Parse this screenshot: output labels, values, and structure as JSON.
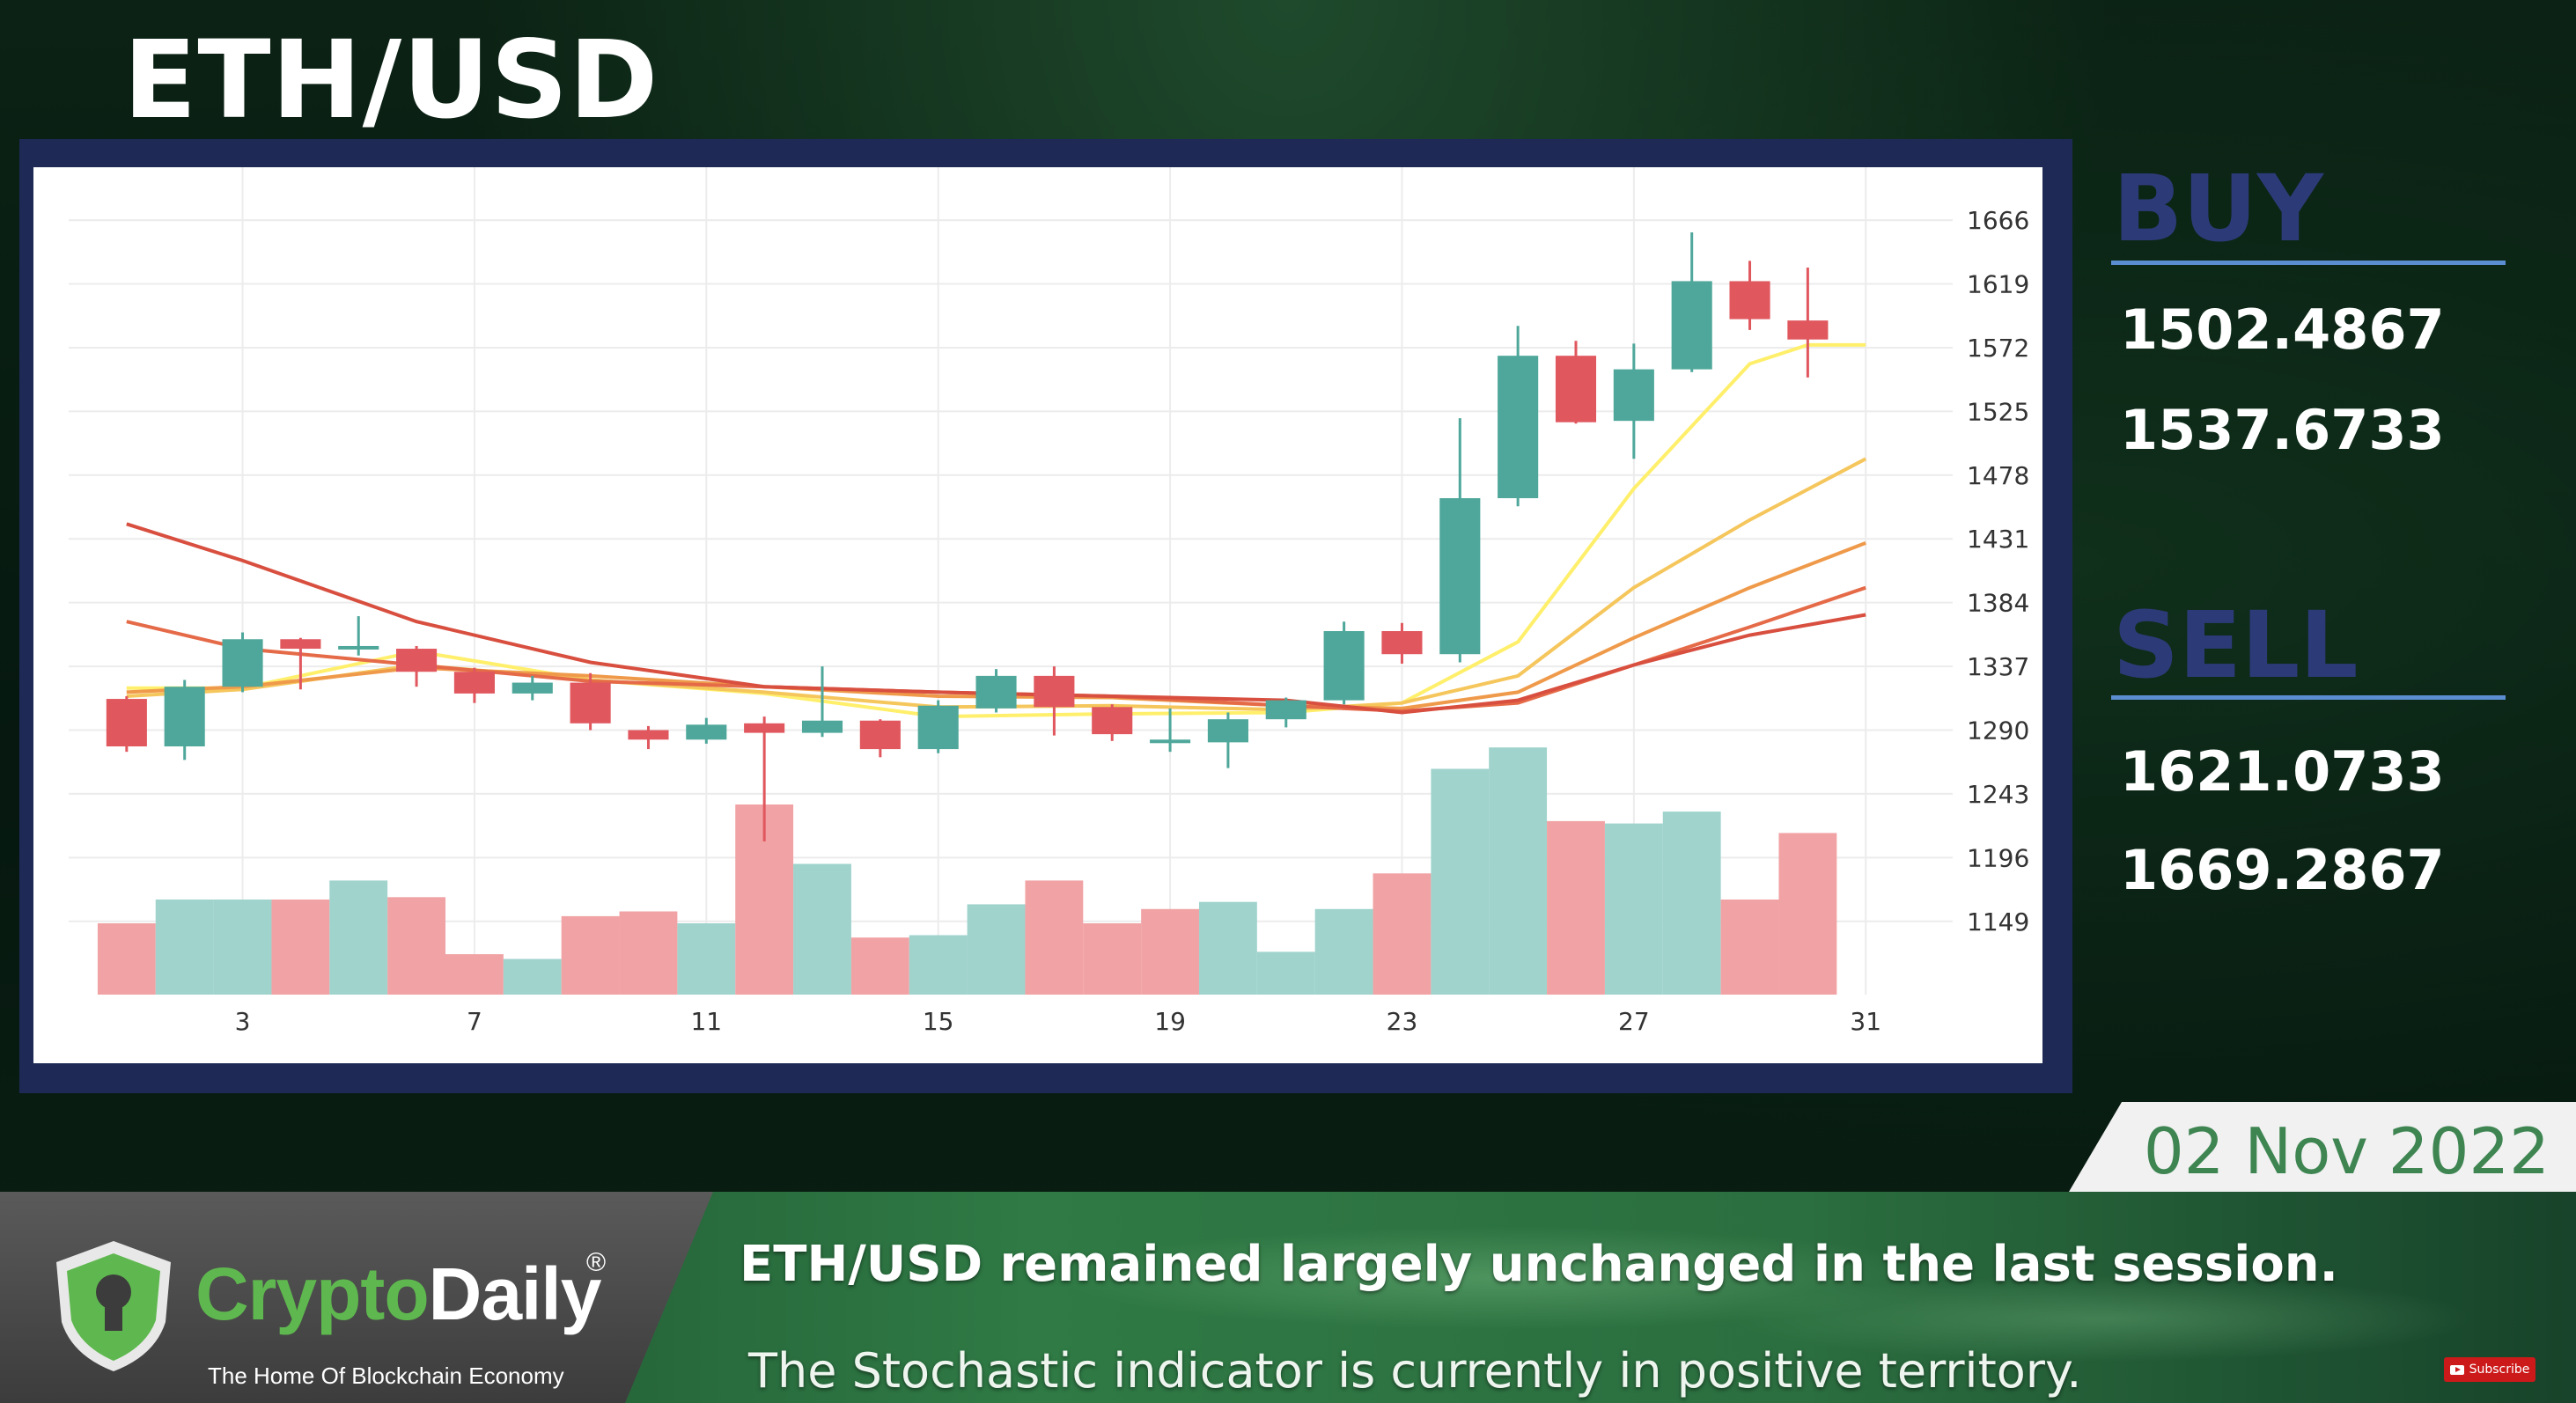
{
  "title": "ETH/USD",
  "buy": {
    "label": "BUY",
    "values": [
      "1502.4867",
      "1537.6733"
    ]
  },
  "sell": {
    "label": "SELL",
    "values": [
      "1621.0733",
      "1669.2867"
    ]
  },
  "date": "02 Nov 2022",
  "ticker": {
    "line1": "ETH/USD remained largely unchanged in the last session.",
    "line2": "The Stochastic indicator is currently in positive territory."
  },
  "brand": {
    "name_part1": "Crypto",
    "name_part2": "Daily",
    "registered": "®",
    "tagline": "The Home Of Blockchain Economy",
    "subscribe": "Subscribe"
  },
  "colors": {
    "up": "#4ea79a",
    "down": "#e0575e",
    "vol_up": "#9fd3cc",
    "vol_down": "#f1a2a4",
    "frame": "#1e2a55",
    "accent_blue": "#2d3a78"
  },
  "chart_data": {
    "type": "candlestick",
    "x_ticks": [
      3,
      7,
      11,
      15,
      19,
      23,
      27,
      31
    ],
    "y_ticks": [
      1149,
      1196,
      1243,
      1290,
      1337,
      1384,
      1431,
      1478,
      1525,
      1572,
      1619,
      1666
    ],
    "ylim": [
      1095,
      1705
    ],
    "xlim": [
      0,
      32.5
    ],
    "candles": [
      {
        "day": 1,
        "open": 1313,
        "high": 1315,
        "low": 1274,
        "close": 1278
      },
      {
        "day": 2,
        "open": 1278,
        "high": 1327,
        "low": 1268,
        "close": 1322
      },
      {
        "day": 3,
        "open": 1322,
        "high": 1362,
        "low": 1318,
        "close": 1357
      },
      {
        "day": 4,
        "open": 1357,
        "high": 1358,
        "low": 1320,
        "close": 1350
      },
      {
        "day": 5,
        "open": 1350,
        "high": 1374,
        "low": 1345,
        "close": 1352
      },
      {
        "day": 6,
        "open": 1350,
        "high": 1352,
        "low": 1322,
        "close": 1333
      },
      {
        "day": 7,
        "open": 1333,
        "high": 1336,
        "low": 1310,
        "close": 1317
      },
      {
        "day": 8,
        "open": 1317,
        "high": 1330,
        "low": 1312,
        "close": 1325
      },
      {
        "day": 9,
        "open": 1325,
        "high": 1332,
        "low": 1290,
        "close": 1295
      },
      {
        "day": 10,
        "open": 1290,
        "high": 1293,
        "low": 1276,
        "close": 1283
      },
      {
        "day": 11,
        "open": 1283,
        "high": 1299,
        "low": 1280,
        "close": 1294
      },
      {
        "day": 12,
        "open": 1295,
        "high": 1300,
        "low": 1208,
        "close": 1288
      },
      {
        "day": 13,
        "open": 1288,
        "high": 1337,
        "low": 1285,
        "close": 1297
      },
      {
        "day": 14,
        "open": 1297,
        "high": 1298,
        "low": 1270,
        "close": 1276
      },
      {
        "day": 15,
        "open": 1276,
        "high": 1312,
        "low": 1273,
        "close": 1308
      },
      {
        "day": 16,
        "open": 1306,
        "high": 1335,
        "low": 1303,
        "close": 1330
      },
      {
        "day": 17,
        "open": 1330,
        "high": 1337,
        "low": 1286,
        "close": 1307
      },
      {
        "day": 18,
        "open": 1307,
        "high": 1309,
        "low": 1282,
        "close": 1287
      },
      {
        "day": 19,
        "open": 1283,
        "high": 1306,
        "low": 1274,
        "close": 1283
      },
      {
        "day": 20,
        "open": 1281,
        "high": 1303,
        "low": 1262,
        "close": 1298
      },
      {
        "day": 21,
        "open": 1298,
        "high": 1314,
        "low": 1292,
        "close": 1312
      },
      {
        "day": 22,
        "open": 1312,
        "high": 1370,
        "low": 1309,
        "close": 1363
      },
      {
        "day": 23,
        "open": 1363,
        "high": 1369,
        "low": 1339,
        "close": 1346
      },
      {
        "day": 24,
        "open": 1346,
        "high": 1520,
        "low": 1340,
        "close": 1461
      },
      {
        "day": 25,
        "open": 1461,
        "high": 1588,
        "low": 1455,
        "close": 1566
      },
      {
        "day": 26,
        "open": 1566,
        "high": 1577,
        "low": 1516,
        "close": 1517
      },
      {
        "day": 27,
        "open": 1518,
        "high": 1575,
        "low": 1490,
        "close": 1556
      },
      {
        "day": 28,
        "open": 1556,
        "high": 1657,
        "low": 1554,
        "close": 1621
      },
      {
        "day": 29,
        "open": 1621,
        "high": 1636,
        "low": 1585,
        "close": 1593
      },
      {
        "day": 30,
        "open": 1592,
        "high": 1631,
        "low": 1550,
        "close": 1578
      }
    ],
    "volume": [
      {
        "day": 1,
        "v": 0.3,
        "dir": "down"
      },
      {
        "day": 2,
        "v": 0.4,
        "dir": "up"
      },
      {
        "day": 3,
        "v": 0.4,
        "dir": "up"
      },
      {
        "day": 4,
        "v": 0.4,
        "dir": "down"
      },
      {
        "day": 5,
        "v": 0.48,
        "dir": "up"
      },
      {
        "day": 6,
        "v": 0.41,
        "dir": "down"
      },
      {
        "day": 7,
        "v": 0.17,
        "dir": "down"
      },
      {
        "day": 8,
        "v": 0.15,
        "dir": "up"
      },
      {
        "day": 9,
        "v": 0.33,
        "dir": "down"
      },
      {
        "day": 10,
        "v": 0.35,
        "dir": "down"
      },
      {
        "day": 11,
        "v": 0.3,
        "dir": "up"
      },
      {
        "day": 12,
        "v": 0.8,
        "dir": "down"
      },
      {
        "day": 13,
        "v": 0.55,
        "dir": "up"
      },
      {
        "day": 14,
        "v": 0.24,
        "dir": "down"
      },
      {
        "day": 15,
        "v": 0.25,
        "dir": "up"
      },
      {
        "day": 16,
        "v": 0.38,
        "dir": "up"
      },
      {
        "day": 17,
        "v": 0.48,
        "dir": "down"
      },
      {
        "day": 18,
        "v": 0.3,
        "dir": "down"
      },
      {
        "day": 19,
        "v": 0.36,
        "dir": "down"
      },
      {
        "day": 20,
        "v": 0.39,
        "dir": "up"
      },
      {
        "day": 21,
        "v": 0.18,
        "dir": "up"
      },
      {
        "day": 22,
        "v": 0.36,
        "dir": "up"
      },
      {
        "day": 23,
        "v": 0.51,
        "dir": "down"
      },
      {
        "day": 24,
        "v": 0.95,
        "dir": "up"
      },
      {
        "day": 25,
        "v": 1.04,
        "dir": "up"
      },
      {
        "day": 26,
        "v": 0.73,
        "dir": "down"
      },
      {
        "day": 27,
        "v": 0.72,
        "dir": "up"
      },
      {
        "day": 28,
        "v": 0.77,
        "dir": "up"
      },
      {
        "day": 29,
        "v": 0.4,
        "dir": "down"
      },
      {
        "day": 30,
        "v": 0.68,
        "dir": "down"
      }
    ],
    "moving_averages": [
      {
        "color": "#ffef6b",
        "values": [
          [
            1,
            1321
          ],
          [
            3,
            1321
          ],
          [
            6,
            1348
          ],
          [
            9,
            1327
          ],
          [
            12,
            1317
          ],
          [
            15,
            1300
          ],
          [
            18,
            1302
          ],
          [
            21,
            1303
          ],
          [
            23,
            1310
          ],
          [
            25,
            1355
          ],
          [
            27,
            1468
          ],
          [
            29,
            1560
          ],
          [
            30,
            1574
          ],
          [
            31,
            1574
          ]
        ]
      },
      {
        "color": "#f5c65c",
        "values": [
          [
            1,
            1315
          ],
          [
            3,
            1320
          ],
          [
            6,
            1338
          ],
          [
            9,
            1327
          ],
          [
            12,
            1318
          ],
          [
            15,
            1307
          ],
          [
            18,
            1308
          ],
          [
            21,
            1305
          ],
          [
            23,
            1310
          ],
          [
            25,
            1330
          ],
          [
            27,
            1395
          ],
          [
            29,
            1445
          ],
          [
            31,
            1490
          ]
        ]
      },
      {
        "color": "#ef9a4a",
        "values": [
          [
            1,
            1318
          ],
          [
            3,
            1322
          ],
          [
            6,
            1336
          ],
          [
            9,
            1330
          ],
          [
            12,
            1322
          ],
          [
            15,
            1315
          ],
          [
            18,
            1314
          ],
          [
            21,
            1308
          ],
          [
            23,
            1306
          ],
          [
            25,
            1318
          ],
          [
            27,
            1358
          ],
          [
            29,
            1395
          ],
          [
            31,
            1428
          ]
        ]
      },
      {
        "color": "#e56a48",
        "values": [
          [
            1,
            1370
          ],
          [
            3,
            1350
          ],
          [
            6,
            1338
          ],
          [
            9,
            1326
          ],
          [
            12,
            1322
          ],
          [
            15,
            1318
          ],
          [
            18,
            1315
          ],
          [
            21,
            1308
          ],
          [
            23,
            1304
          ],
          [
            25,
            1310
          ],
          [
            27,
            1338
          ],
          [
            29,
            1366
          ],
          [
            31,
            1395
          ]
        ]
      },
      {
        "color": "#d84f3f",
        "values": [
          [
            1,
            1442
          ],
          [
            3,
            1415
          ],
          [
            6,
            1370
          ],
          [
            9,
            1340
          ],
          [
            12,
            1322
          ],
          [
            15,
            1318
          ],
          [
            18,
            1315
          ],
          [
            21,
            1312
          ],
          [
            23,
            1303
          ],
          [
            25,
            1312
          ],
          [
            27,
            1338
          ],
          [
            29,
            1360
          ],
          [
            31,
            1375
          ]
        ]
      }
    ]
  }
}
